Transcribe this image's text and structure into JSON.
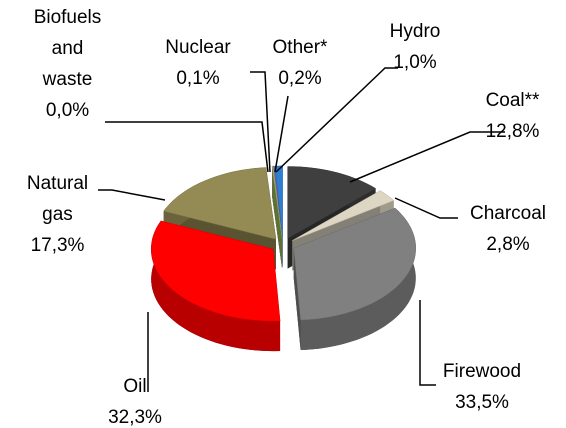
{
  "chart_data": {
    "type": "pie3d",
    "categories": [
      "Coal**",
      "Charcoal",
      "Firewood",
      "Oil",
      "Natural gas",
      "Biofuels and waste",
      "Nuclear",
      "Other*",
      "Hydro"
    ],
    "values": [
      12.8,
      2.8,
      33.5,
      32.3,
      17.3,
      0.0,
      0.1,
      0.2,
      1.0
    ],
    "value_labels": [
      "12,8%",
      "2,8%",
      "33,5%",
      "32,3%",
      "17,3%",
      "0,0%",
      "0,1%",
      "0,2%",
      "1,0%"
    ],
    "colors": [
      "#3f3f3f",
      "#ddd6c3",
      "#808080",
      "#ff0000",
      "#948a54",
      "#9bbb59",
      "#bfbfbf",
      "#8064a2",
      "#2e7fd0"
    ]
  }
}
